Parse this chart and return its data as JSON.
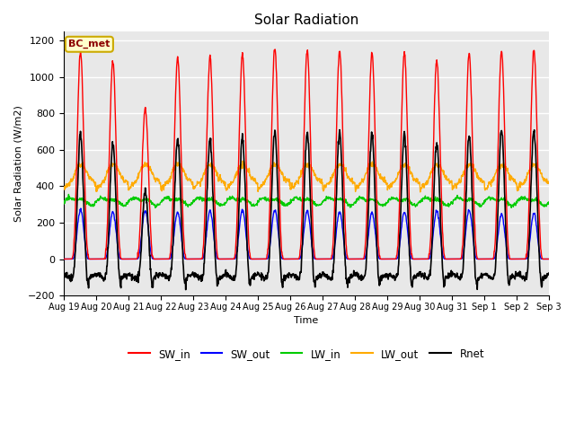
{
  "title": "Solar Radiation",
  "ylabel": "Solar Radiation (W/m2)",
  "xlabel": "Time",
  "ylim": [
    -200,
    1250
  ],
  "yticks": [
    -200,
    0,
    200,
    400,
    600,
    800,
    1000,
    1200
  ],
  "date_labels": [
    "Aug 19",
    "Aug 20",
    "Aug 21",
    "Aug 22",
    "Aug 23",
    "Aug 24",
    "Aug 25",
    "Aug 26",
    "Aug 27",
    "Aug 28",
    "Aug 29",
    "Aug 30",
    "Aug 31",
    "Sep 1",
    "Sep 2",
    "Sep 3"
  ],
  "station_label": "BC_met",
  "colors": {
    "SW_in": "#ff0000",
    "SW_out": "#0000ff",
    "LW_in": "#00cc00",
    "LW_out": "#ffaa00",
    "Rnet": "#000000"
  },
  "background_color": "#ffffff",
  "plot_bg_color": "#e8e8e8",
  "grid_color": "#ffffff",
  "n_days": 15,
  "hours_per_day": 24,
  "dt": 0.25,
  "sw_peaks": [
    1140,
    1090,
    830,
    1110,
    1110,
    1130,
    1160,
    1150,
    1140,
    1130,
    1130,
    1090,
    1130,
    1140,
    1150
  ],
  "sw_out_peaks": [
    270,
    260,
    265,
    260,
    265,
    270,
    270,
    265,
    260,
    255,
    260,
    265,
    270,
    245,
    250
  ],
  "lw_in_base": 320,
  "lw_out_base": 400
}
